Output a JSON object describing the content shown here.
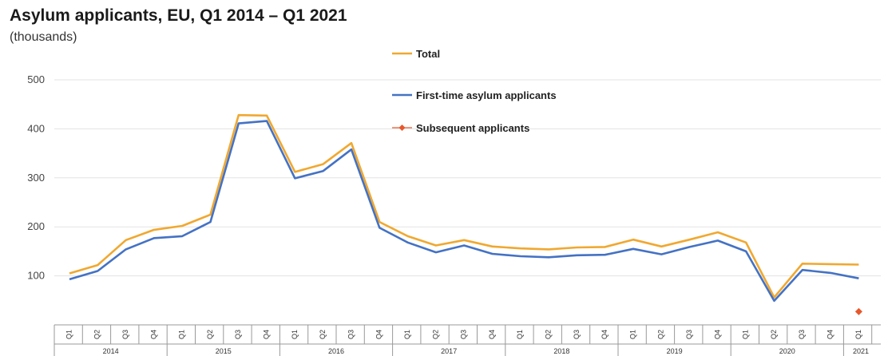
{
  "title": "Asylum applicants, EU, Q1 2014 – Q1 2021",
  "subtitle": "(thousands)",
  "chart_data": {
    "type": "line",
    "title": "Asylum applicants, EU, Q1 2014 – Q1 2021",
    "subtitle": "(thousands)",
    "ylim": [
      0,
      500
    ],
    "yticks": [
      100,
      200,
      300,
      400,
      500
    ],
    "grid": true,
    "legend_position": "top-center",
    "quarters": [
      "Q1",
      "Q2",
      "Q3",
      "Q4",
      "Q1",
      "Q2",
      "Q3",
      "Q4",
      "Q1",
      "Q2",
      "Q3",
      "Q4",
      "Q1",
      "Q2",
      "Q3",
      "Q4",
      "Q1",
      "Q2",
      "Q3",
      "Q4",
      "Q1",
      "Q2",
      "Q3",
      "Q4",
      "Q1",
      "Q2",
      "Q3",
      "Q4",
      "Q1"
    ],
    "years": [
      {
        "label": "2014",
        "count": 4
      },
      {
        "label": "2015",
        "count": 4
      },
      {
        "label": "2016",
        "count": 4
      },
      {
        "label": "2017",
        "count": 4
      },
      {
        "label": "2018",
        "count": 4
      },
      {
        "label": "2019",
        "count": 4
      },
      {
        "label": "2020",
        "count": 4
      },
      {
        "label": "2021",
        "count": 1
      }
    ],
    "series": [
      {
        "name": "Total",
        "color": "#f0a830",
        "values": [
          105,
          122,
          173,
          194,
          202,
          225,
          428,
          427,
          312,
          328,
          371,
          210,
          181,
          162,
          173,
          160,
          156,
          154,
          158,
          159,
          174,
          160,
          174,
          189,
          168,
          56,
          125,
          124,
          123
        ]
      },
      {
        "name": "First-time asylum applicants",
        "color": "#4472c4",
        "values": [
          93,
          110,
          154,
          177,
          181,
          210,
          411,
          416,
          299,
          314,
          358,
          198,
          168,
          148,
          162,
          145,
          140,
          138,
          142,
          143,
          155,
          144,
          159,
          172,
          150,
          49,
          112,
          106,
          95
        ]
      },
      {
        "name": "Subsequent applicants",
        "color": "#e8572a",
        "points": [
          {
            "index": 28,
            "value": 27
          }
        ]
      }
    ]
  }
}
